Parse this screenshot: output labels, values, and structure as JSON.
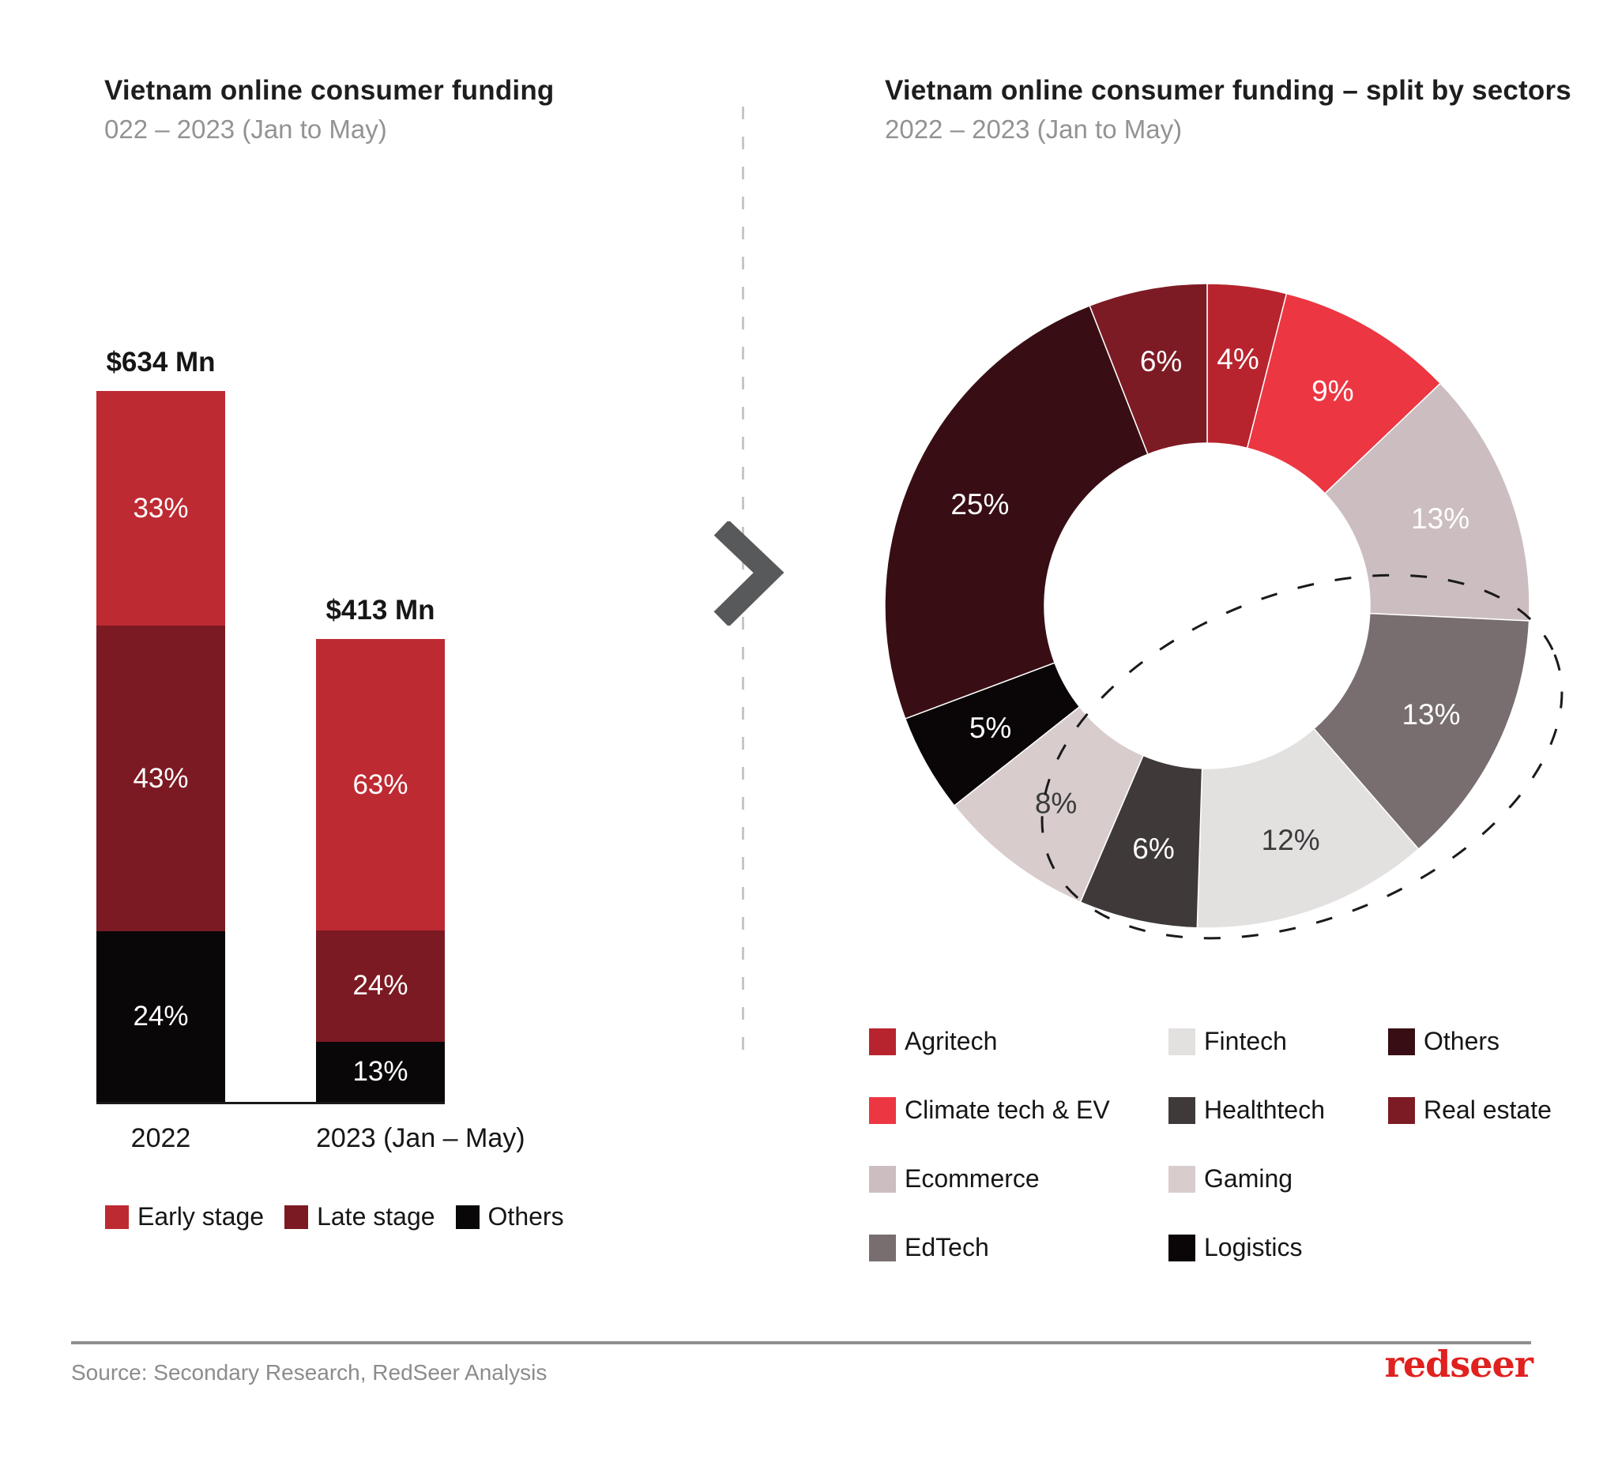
{
  "left_panel": {
    "title": "Vietnam online consumer funding",
    "subtitle": "022 – 2023 (Jan to May)"
  },
  "right_panel": {
    "title": "Vietnam online consumer funding – split by sectors",
    "subtitle": "2022 – 2023 (Jan to May)"
  },
  "chart_data": [
    {
      "type": "bar",
      "stacked": true,
      "title": "Vietnam online consumer funding",
      "subtitle": "022 – 2023 (Jan to May)",
      "categories": [
        "2022",
        "2023 (Jan – May)"
      ],
      "bar_totals": [
        "$634 Mn",
        "$413 Mn"
      ],
      "totals_mn": [
        634,
        413
      ],
      "unit": "%",
      "series": [
        {
          "name": "Early stage",
          "color": "#BE2A32",
          "values": [
            33,
            63
          ]
        },
        {
          "name": "Late stage",
          "color": "#7C1A23",
          "values": [
            43,
            24
          ]
        },
        {
          "name": "Others",
          "color": "#0A0708",
          "values": [
            24,
            13
          ]
        }
      ],
      "legend_position": "bottom"
    },
    {
      "type": "pie",
      "donut": true,
      "title": "Vietnam online consumer funding – split by sectors",
      "subtitle": "2022 – 2023 (Jan to May)",
      "slices": [
        {
          "label": "Agritech",
          "value": 4,
          "color": "#B8242E"
        },
        {
          "label": "Climate tech & EV",
          "value": 9,
          "color": "#EC3642"
        },
        {
          "label": "Ecommerce",
          "value": 13,
          "color": "#CCBEC0"
        },
        {
          "label": "EdTech",
          "value": 13,
          "color": "#786D6F"
        },
        {
          "label": "Fintech",
          "value": 12,
          "color": "#E3E0E0"
        },
        {
          "label": "Healthtech",
          "value": 6,
          "color": "#3F3A39"
        },
        {
          "label": "Gaming",
          "value": 8,
          "color": "#D8CCCD"
        },
        {
          "label": "Logistics",
          "value": 5,
          "color": "#0A0608"
        },
        {
          "label": "Others",
          "value": 25,
          "color": "#380E14"
        },
        {
          "label": "Real estate",
          "value": 6,
          "color": "#7D1B24"
        }
      ],
      "legend_columns": [
        [
          "Agritech",
          "Climate tech & EV",
          "Ecommerce",
          "EdTech"
        ],
        [
          "Fintech",
          "Healthtech",
          "Gaming",
          "Logistics"
        ],
        [
          "Others",
          "Real estate"
        ]
      ],
      "highlight_annotation": "dashed-ellipse"
    }
  ],
  "footer": {
    "source": "Source: Secondary Research, RedSeer Analysis",
    "brand": "redseer",
    "brand_color": "#E0211F"
  }
}
